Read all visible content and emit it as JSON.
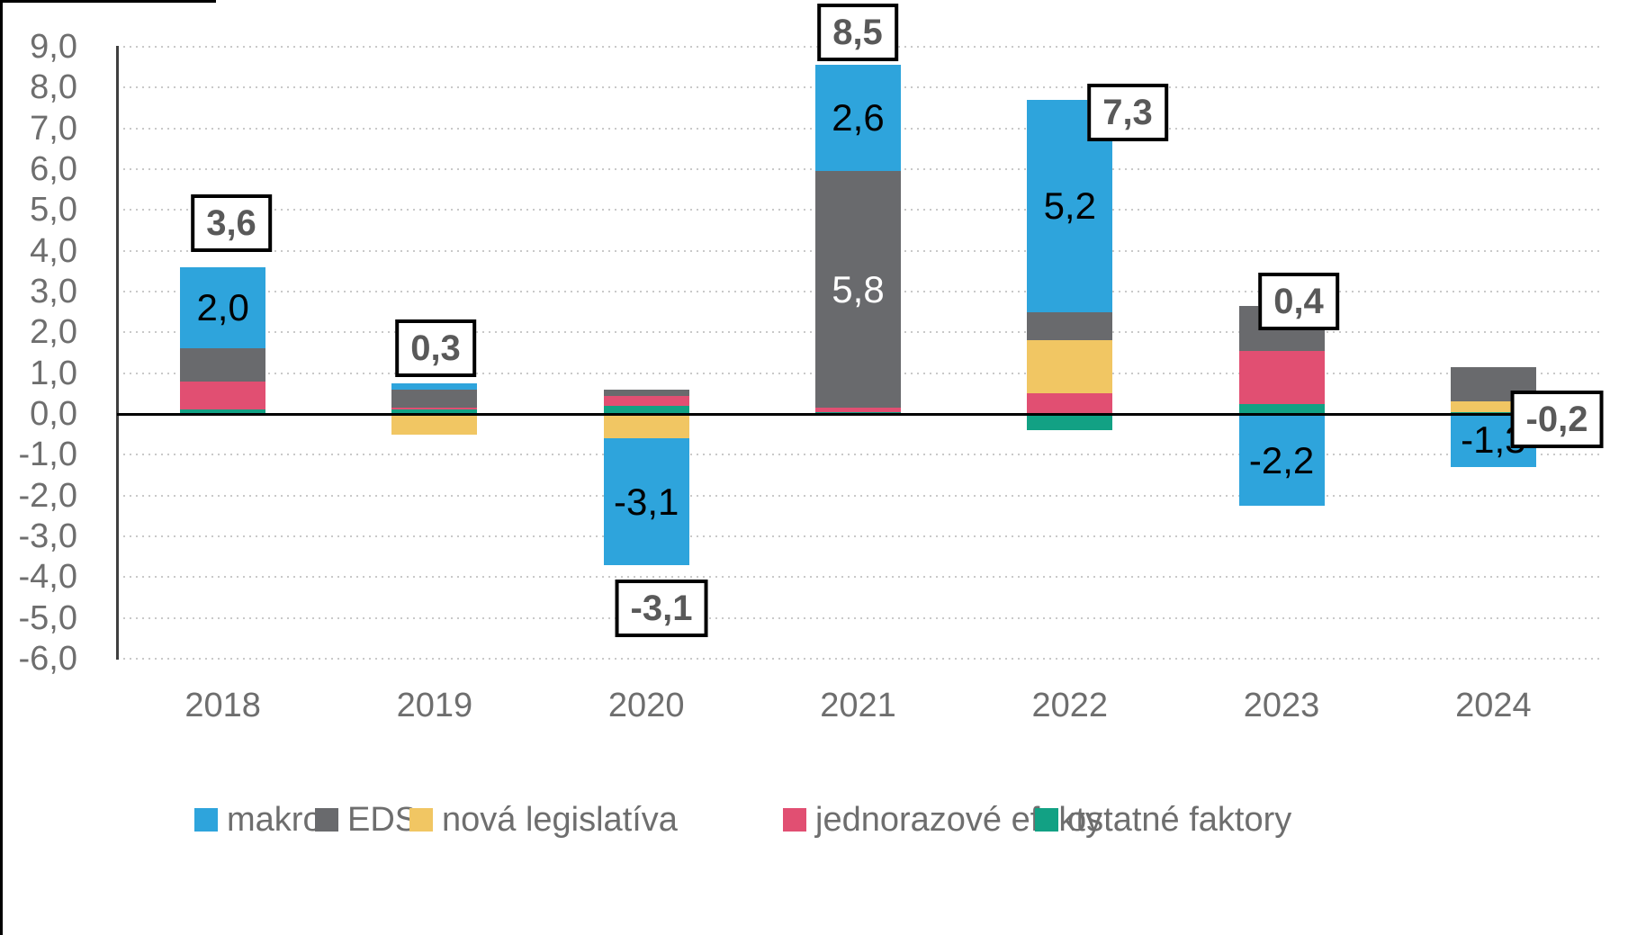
{
  "chart_data": {
    "type": "bar",
    "stacked": true,
    "title": "",
    "xlabel": "",
    "ylabel": "",
    "categories": [
      "2018",
      "2019",
      "2020",
      "2021",
      "2022",
      "2023",
      "2024"
    ],
    "series": [
      {
        "name": "makro",
        "color": "#2EA4DC",
        "values": [
          2.0,
          0.15,
          -3.1,
          2.6,
          5.2,
          -2.2,
          -1.3
        ]
      },
      {
        "name": "EDS",
        "color": "#696A6D",
        "values": [
          0.8,
          0.45,
          0.15,
          5.8,
          0.7,
          1.1,
          0.85
        ]
      },
      {
        "name": "nová legislatíva",
        "color": "#F1C663",
        "values": [
          0.0,
          -0.5,
          -0.6,
          -0.05,
          1.3,
          -0.05,
          0.25
        ]
      },
      {
        "name": "jednorazové efekty",
        "color": "#E14F72",
        "values": [
          0.7,
          0.05,
          0.25,
          0.1,
          0.5,
          1.3,
          0.0
        ]
      },
      {
        "name": "ostatné faktory",
        "color": "#12A184",
        "values": [
          0.1,
          0.1,
          0.2,
          0.05,
          -0.4,
          0.25,
          0.05
        ]
      }
    ],
    "stack_order_bottom_to_top": [
      "ostatné faktory",
      "jednorazové efekty",
      "nová legislatíva",
      "EDS",
      "makro"
    ],
    "y_axis": {
      "min": -6,
      "max": 9,
      "step": 1,
      "tick_labels": [
        "9,0",
        "8,0",
        "7,0",
        "6,0",
        "5,0",
        "4,0",
        "3,0",
        "2,0",
        "1,0",
        "0,0",
        "-1,0",
        "-2,0",
        "-3,0",
        "-4,0",
        "-5,0",
        "-6,0"
      ]
    },
    "grid": true,
    "legend_position": "bottom",
    "total_labels": [
      {
        "category": "2018",
        "text": "3,6"
      },
      {
        "category": "2019",
        "text": "0,3"
      },
      {
        "category": "2020",
        "text": "-3,1"
      },
      {
        "category": "2021",
        "text": "8,5"
      },
      {
        "category": "2022",
        "text": "7,3"
      },
      {
        "category": "2023",
        "text": "0,4"
      },
      {
        "category": "2024",
        "text": "-0,2"
      }
    ],
    "bar_labels": [
      {
        "category": "2018",
        "series": "makro",
        "text": "2,0",
        "text_color": "#000000"
      },
      {
        "category": "2020",
        "series": "makro",
        "text": "-3,1",
        "text_color": "#000000"
      },
      {
        "category": "2021",
        "series": "makro",
        "text": "2,6",
        "text_color": "#000000"
      },
      {
        "category": "2021",
        "series": "EDS",
        "text": "5,8",
        "text_color": "#FFFFFF"
      },
      {
        "category": "2022",
        "series": "makro",
        "text": "5,2",
        "text_color": "#000000"
      },
      {
        "category": "2023",
        "series": "makro",
        "text": "-2,2",
        "text_color": "#000000"
      },
      {
        "category": "2024",
        "series": "makro",
        "text": "-1,3",
        "text_color": "#000000"
      }
    ]
  }
}
